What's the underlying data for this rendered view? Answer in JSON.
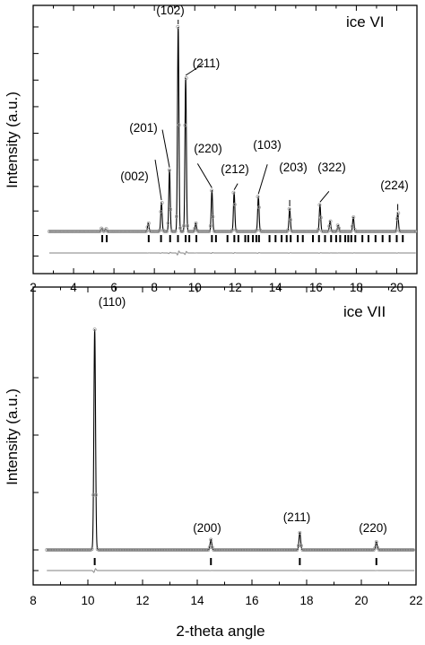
{
  "chart_data": [
    {
      "type": "line",
      "panel_label": "ice VI",
      "ylabel": "Intensity (a.u.)",
      "xlabel": "",
      "xlim": [
        2,
        21
      ],
      "x_ticks": [
        2,
        4,
        6,
        8,
        10,
        12,
        14,
        16,
        18,
        20
      ],
      "ylim": [
        -0.12,
        1.1
      ],
      "y_ticks_unlabeled": [
        -0.12,
        -0.02,
        0.1,
        0.22,
        0.35,
        0.48,
        0.61,
        0.74,
        0.87,
        1.0
      ],
      "baseline": 0.0,
      "x_start": 2.8,
      "peaks": [
        {
          "x": 5.4,
          "y": 0.015
        },
        {
          "x": 5.6,
          "y": 0.012
        },
        {
          "x": 7.7,
          "y": 0.04
        },
        {
          "x": 8.35,
          "y": 0.14,
          "label": "(002)"
        },
        {
          "x": 8.75,
          "y": 0.3,
          "label": "(201)"
        },
        {
          "x": 9.18,
          "y": 1.0,
          "label": "(102)"
        },
        {
          "x": 9.55,
          "y": 0.75,
          "label": "(211)"
        },
        {
          "x": 10.05,
          "y": 0.04
        },
        {
          "x": 10.85,
          "y": 0.2,
          "label": "(220)"
        },
        {
          "x": 11.95,
          "y": 0.19,
          "label": "(212)"
        },
        {
          "x": 13.15,
          "y": 0.17,
          "label": "(103)"
        },
        {
          "x": 14.7,
          "y": 0.11,
          "label": "(203)"
        },
        {
          "x": 16.2,
          "y": 0.13,
          "label": "(322)"
        },
        {
          "x": 16.7,
          "y": 0.05
        },
        {
          "x": 17.1,
          "y": 0.03
        },
        {
          "x": 17.85,
          "y": 0.07
        },
        {
          "x": 20.05,
          "y": 0.09,
          "label": "(224)"
        }
      ],
      "reflection_marks": [
        5.42,
        5.64,
        7.72,
        8.33,
        8.78,
        9.17,
        9.55,
        9.73,
        10.08,
        10.85,
        11.05,
        11.62,
        11.96,
        12.16,
        12.5,
        12.65,
        12.88,
        13.05,
        13.18,
        13.7,
        14.0,
        14.3,
        14.55,
        14.75,
        15.1,
        15.35,
        15.85,
        16.15,
        16.45,
        16.75,
        17.0,
        17.2,
        17.45,
        17.6,
        17.75,
        17.95,
        18.3,
        18.6,
        18.95,
        19.3,
        19.65,
        20.0,
        20.3
      ]
    },
    {
      "type": "line",
      "panel_label": "ice VII",
      "ylabel": "Intensity (a.u.)",
      "xlabel": "2-theta angle",
      "xlim": [
        8,
        22
      ],
      "x_ticks": [
        8,
        10,
        12,
        14,
        16,
        18,
        20,
        22
      ],
      "ylim": [
        -0.15,
        1.0
      ],
      "y_ticks_unlabeled": [
        -0.09,
        0.0,
        0.25,
        0.5,
        0.75
      ],
      "baseline": 0.0,
      "x_start": 8.5,
      "peaks": [
        {
          "x": 10.25,
          "y": 0.96,
          "label": "(110)"
        },
        {
          "x": 14.5,
          "y": 0.045,
          "label": "(200)"
        },
        {
          "x": 17.75,
          "y": 0.075,
          "label": "(211)"
        },
        {
          "x": 20.55,
          "y": 0.035,
          "label": "(220)"
        }
      ],
      "reflection_marks": [
        10.25,
        14.5,
        17.75,
        20.55
      ]
    }
  ]
}
